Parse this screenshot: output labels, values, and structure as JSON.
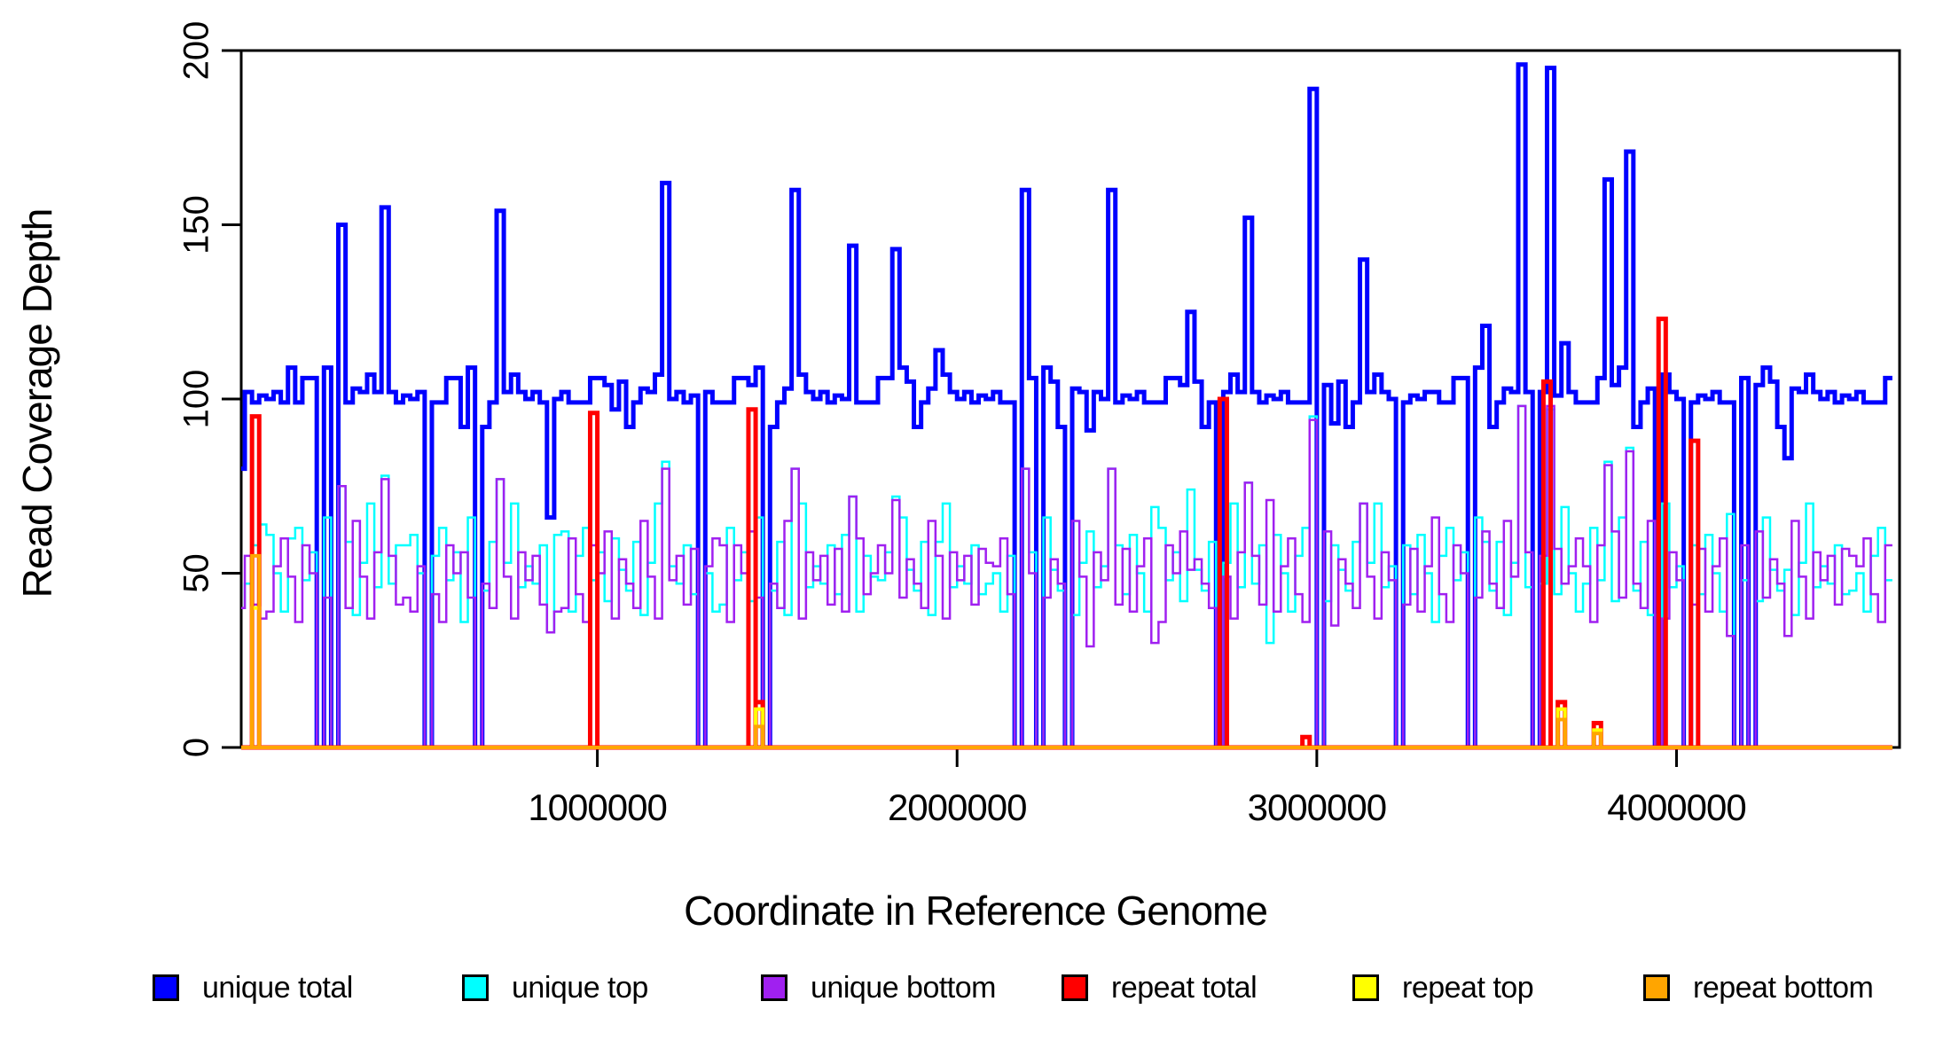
{
  "y_axis": {
    "title": "Read Coverage Depth",
    "ticks": [
      {
        "value": 0,
        "label": "0"
      },
      {
        "value": 50,
        "label": "50"
      },
      {
        "value": 100,
        "label": "100"
      },
      {
        "value": 150,
        "label": "150"
      },
      {
        "value": 200,
        "label": "200"
      }
    ]
  },
  "x_axis": {
    "title": "Coordinate in Reference Genome",
    "ticks": [
      {
        "value": 1000000,
        "label": "1000000"
      },
      {
        "value": 2000000,
        "label": "2000000"
      },
      {
        "value": 3000000,
        "label": "3000000"
      },
      {
        "value": 4000000,
        "label": "4000000"
      }
    ]
  },
  "legend": {
    "items": [
      {
        "label": "unique total",
        "color": "#0000FF"
      },
      {
        "label": "unique top",
        "color": "#00FFFF"
      },
      {
        "label": "unique bottom",
        "color": "#A020F0"
      },
      {
        "label": "repeat total",
        "color": "#FF0000"
      },
      {
        "label": "repeat top",
        "color": "#FFFF00"
      },
      {
        "label": "repeat bottom",
        "color": "#FFA500"
      }
    ]
  },
  "chart_data": {
    "type": "line",
    "subtype": "step",
    "title": "",
    "xlabel": "Coordinate in Reference Genome",
    "ylabel": "Read Coverage Depth",
    "xlim": [
      10000,
      4620000
    ],
    "ylim": [
      0,
      200
    ],
    "grid": false,
    "legend_position": "bottom",
    "x_start": 0,
    "x_step": 20000,
    "x_max": 4600000,
    "series": [
      {
        "name": "unique total",
        "color": "#0000FF",
        "width": 5,
        "values": [
          80,
          102,
          99,
          101,
          100,
          102,
          99,
          109,
          99,
          106,
          106,
          0,
          109,
          0,
          150,
          99,
          103,
          102,
          107,
          102,
          155,
          102,
          99,
          101,
          100,
          102,
          0,
          99,
          99,
          106,
          106,
          92,
          109,
          0,
          92,
          99,
          154,
          102,
          107,
          102,
          100,
          102,
          99,
          66,
          100,
          102,
          99,
          99,
          99,
          106,
          106,
          104,
          97,
          105,
          92,
          99,
          103,
          102,
          107,
          162,
          100,
          102,
          99,
          101,
          0,
          102,
          99,
          99,
          99,
          106,
          106,
          104,
          109,
          0,
          92,
          99,
          103,
          160,
          107,
          102,
          100,
          102,
          99,
          101,
          100,
          144,
          99,
          99,
          99,
          106,
          106,
          143,
          109,
          105,
          92,
          99,
          103,
          114,
          107,
          102,
          100,
          102,
          99,
          101,
          100,
          102,
          99,
          99,
          0,
          160,
          106,
          0,
          109,
          105,
          92,
          0,
          103,
          102,
          91,
          102,
          100,
          160,
          99,
          101,
          100,
          102,
          99,
          99,
          99,
          106,
          106,
          104,
          125,
          105,
          92,
          99,
          0,
          102,
          107,
          102,
          152,
          102,
          99,
          101,
          100,
          102,
          99,
          99,
          99,
          189,
          0,
          104,
          93,
          105,
          92,
          99,
          140,
          102,
          107,
          102,
          100,
          0,
          99,
          101,
          100,
          102,
          102,
          99,
          99,
          106,
          106,
          0,
          109,
          121,
          92,
          99,
          103,
          102,
          196,
          102,
          0,
          102,
          195,
          101,
          116,
          102,
          99,
          99,
          99,
          106,
          163,
          104,
          109,
          171,
          92,
          99,
          103,
          0,
          107,
          102,
          100,
          0,
          99,
          101,
          100,
          102,
          99,
          99,
          0,
          106,
          0,
          104,
          109,
          105,
          92,
          83,
          103,
          102,
          107,
          102,
          100,
          102,
          99,
          101,
          100,
          102,
          99,
          99,
          99,
          106
        ]
      },
      {
        "name": "unique top",
        "color": "#00FFFF",
        "width": 2.5,
        "values": [
          40,
          47,
          58,
          64,
          61,
          50,
          39,
          60,
          63,
          48,
          56,
          0,
          66,
          0,
          75,
          59,
          38,
          53,
          70,
          46,
          78,
          47,
          58,
          58,
          61,
          50,
          0,
          55,
          63,
          48,
          56,
          36,
          66,
          0,
          45,
          59,
          77,
          53,
          70,
          46,
          52,
          47,
          58,
          33,
          61,
          62,
          39,
          55,
          63,
          48,
          56,
          42,
          60,
          51,
          45,
          59,
          38,
          53,
          70,
          82,
          52,
          47,
          58,
          44,
          0,
          50,
          39,
          41,
          63,
          48,
          56,
          42,
          66,
          0,
          45,
          59,
          38,
          80,
          70,
          46,
          52,
          47,
          58,
          44,
          61,
          72,
          39,
          55,
          49,
          48,
          56,
          72,
          66,
          51,
          45,
          59,
          38,
          59,
          70,
          46,
          52,
          47,
          58,
          44,
          47,
          50,
          39,
          55,
          0,
          80,
          56,
          0,
          66,
          51,
          45,
          0,
          38,
          53,
          62,
          46,
          52,
          80,
          58,
          44,
          61,
          50,
          39,
          69,
          63,
          48,
          56,
          42,
          74,
          51,
          45,
          59,
          0,
          53,
          70,
          46,
          76,
          47,
          58,
          30,
          61,
          50,
          39,
          55,
          63,
          95,
          0,
          42,
          58,
          51,
          45,
          59,
          70,
          53,
          70,
          46,
          52,
          0,
          58,
          44,
          61,
          50,
          36,
          55,
          63,
          48,
          56,
          0,
          66,
          59,
          45,
          59,
          38,
          53,
          98,
          46,
          0,
          47,
          97,
          44,
          69,
          50,
          39,
          47,
          63,
          48,
          82,
          42,
          66,
          86,
          45,
          59,
          38,
          0,
          70,
          46,
          52,
          0,
          58,
          44,
          61,
          50,
          39,
          67,
          0,
          48,
          0,
          42,
          66,
          51,
          45,
          51,
          38,
          53,
          70,
          46,
          52,
          47,
          58,
          44,
          45,
          50,
          39,
          55,
          63,
          48
        ]
      },
      {
        "name": "unique bottom",
        "color": "#A020F0",
        "width": 2.5,
        "values": [
          40,
          55,
          41,
          37,
          39,
          52,
          60,
          49,
          36,
          58,
          50,
          0,
          43,
          0,
          75,
          40,
          65,
          49,
          37,
          56,
          77,
          55,
          41,
          43,
          39,
          52,
          0,
          44,
          36,
          58,
          50,
          56,
          43,
          0,
          47,
          40,
          77,
          49,
          37,
          56,
          48,
          55,
          41,
          33,
          39,
          40,
          60,
          44,
          36,
          58,
          50,
          62,
          37,
          54,
          47,
          40,
          65,
          49,
          37,
          80,
          48,
          55,
          41,
          57,
          0,
          52,
          60,
          58,
          36,
          58,
          50,
          62,
          43,
          0,
          47,
          40,
          65,
          80,
          37,
          56,
          48,
          55,
          41,
          57,
          39,
          72,
          60,
          44,
          50,
          58,
          50,
          71,
          43,
          54,
          47,
          40,
          65,
          55,
          37,
          56,
          48,
          55,
          41,
          57,
          53,
          52,
          60,
          44,
          0,
          80,
          50,
          0,
          43,
          54,
          47,
          0,
          65,
          49,
          29,
          56,
          48,
          80,
          41,
          57,
          39,
          52,
          60,
          30,
          36,
          58,
          50,
          62,
          51,
          54,
          47,
          40,
          0,
          49,
          37,
          56,
          76,
          55,
          41,
          71,
          39,
          52,
          60,
          44,
          36,
          94,
          0,
          62,
          35,
          54,
          47,
          40,
          70,
          49,
          37,
          56,
          48,
          0,
          41,
          57,
          39,
          52,
          66,
          44,
          36,
          58,
          50,
          0,
          43,
          62,
          47,
          40,
          65,
          49,
          98,
          56,
          0,
          55,
          98,
          57,
          47,
          52,
          60,
          52,
          36,
          58,
          81,
          62,
          43,
          85,
          47,
          40,
          65,
          0,
          37,
          56,
          48,
          0,
          41,
          57,
          39,
          52,
          60,
          32,
          0,
          58,
          0,
          62,
          43,
          54,
          47,
          32,
          65,
          49,
          37,
          56,
          48,
          55,
          41,
          57,
          55,
          52,
          60,
          44,
          36,
          58
        ]
      },
      {
        "name": "repeat total",
        "color": "#FF0000",
        "width": 5,
        "baseline": 0,
        "spikes": [
          {
            "x": 40000,
            "v": 95
          },
          {
            "x": 980000,
            "v": 96
          },
          {
            "x": 1420000,
            "v": 97
          },
          {
            "x": 1440000,
            "v": 13
          },
          {
            "x": 2730000,
            "v": 100
          },
          {
            "x": 2960000,
            "v": 3
          },
          {
            "x": 3630000,
            "v": 105
          },
          {
            "x": 3670000,
            "v": 13
          },
          {
            "x": 3770000,
            "v": 7
          },
          {
            "x": 3950000,
            "v": 123
          },
          {
            "x": 4040000,
            "v": 88
          }
        ]
      },
      {
        "name": "repeat top",
        "color": "#FFFF00",
        "width": 4,
        "baseline": 0,
        "spikes": [
          {
            "x": 40000,
            "v": 40
          },
          {
            "x": 1440000,
            "v": 11
          },
          {
            "x": 3670000,
            "v": 11
          },
          {
            "x": 3770000,
            "v": 5
          }
        ]
      },
      {
        "name": "repeat bottom",
        "color": "#FFA500",
        "width": 4,
        "baseline": 0,
        "spikes": [
          {
            "x": 40000,
            "v": 55
          },
          {
            "x": 1440000,
            "v": 6
          },
          {
            "x": 3670000,
            "v": 8
          },
          {
            "x": 3770000,
            "v": 4
          }
        ]
      }
    ]
  }
}
